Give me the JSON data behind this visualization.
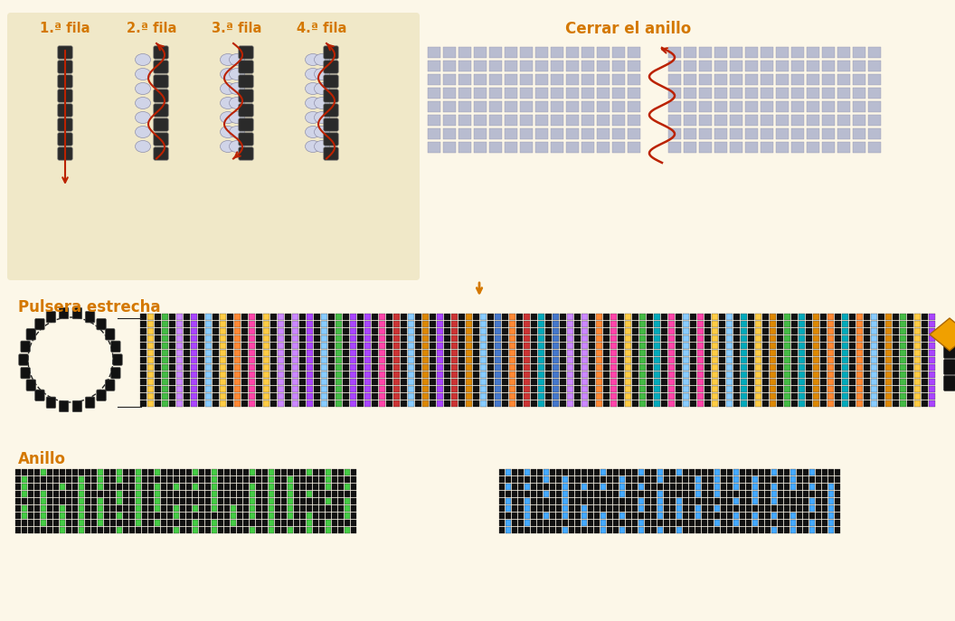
{
  "bg_color": "#fcf7e8",
  "top_panel_color": "#f0e8c8",
  "orange_color": "#d47800",
  "dark_bead_color": "#2a2a2a",
  "light_bead_color": "#b8bcd0",
  "title_fila": [
    "1.ª fila",
    "2.ª fila",
    "3.ª fila",
    "4.ª fila"
  ],
  "title_cerrar": "Cerrar el anillo",
  "title_pulsera": "Pulsera estrecha",
  "title_anillo": "Anillo",
  "arrow_color": "#bb2200",
  "gold_diamond_color": "#f0a000",
  "bead_colors_bracelet": [
    "#111111",
    "#4477cc",
    "#dd8800",
    "#ff44aa",
    "#44bb44",
    "#88ccff",
    "#cc3333",
    "#ffcc44",
    "#aa44ff",
    "#00aabb",
    "#ff8833",
    "#cc88ff"
  ],
  "bead_colors_anillo_green": [
    "#111111",
    "#44cc44"
  ],
  "bead_colors_anillo_blue": [
    "#111111",
    "#44aaff"
  ]
}
